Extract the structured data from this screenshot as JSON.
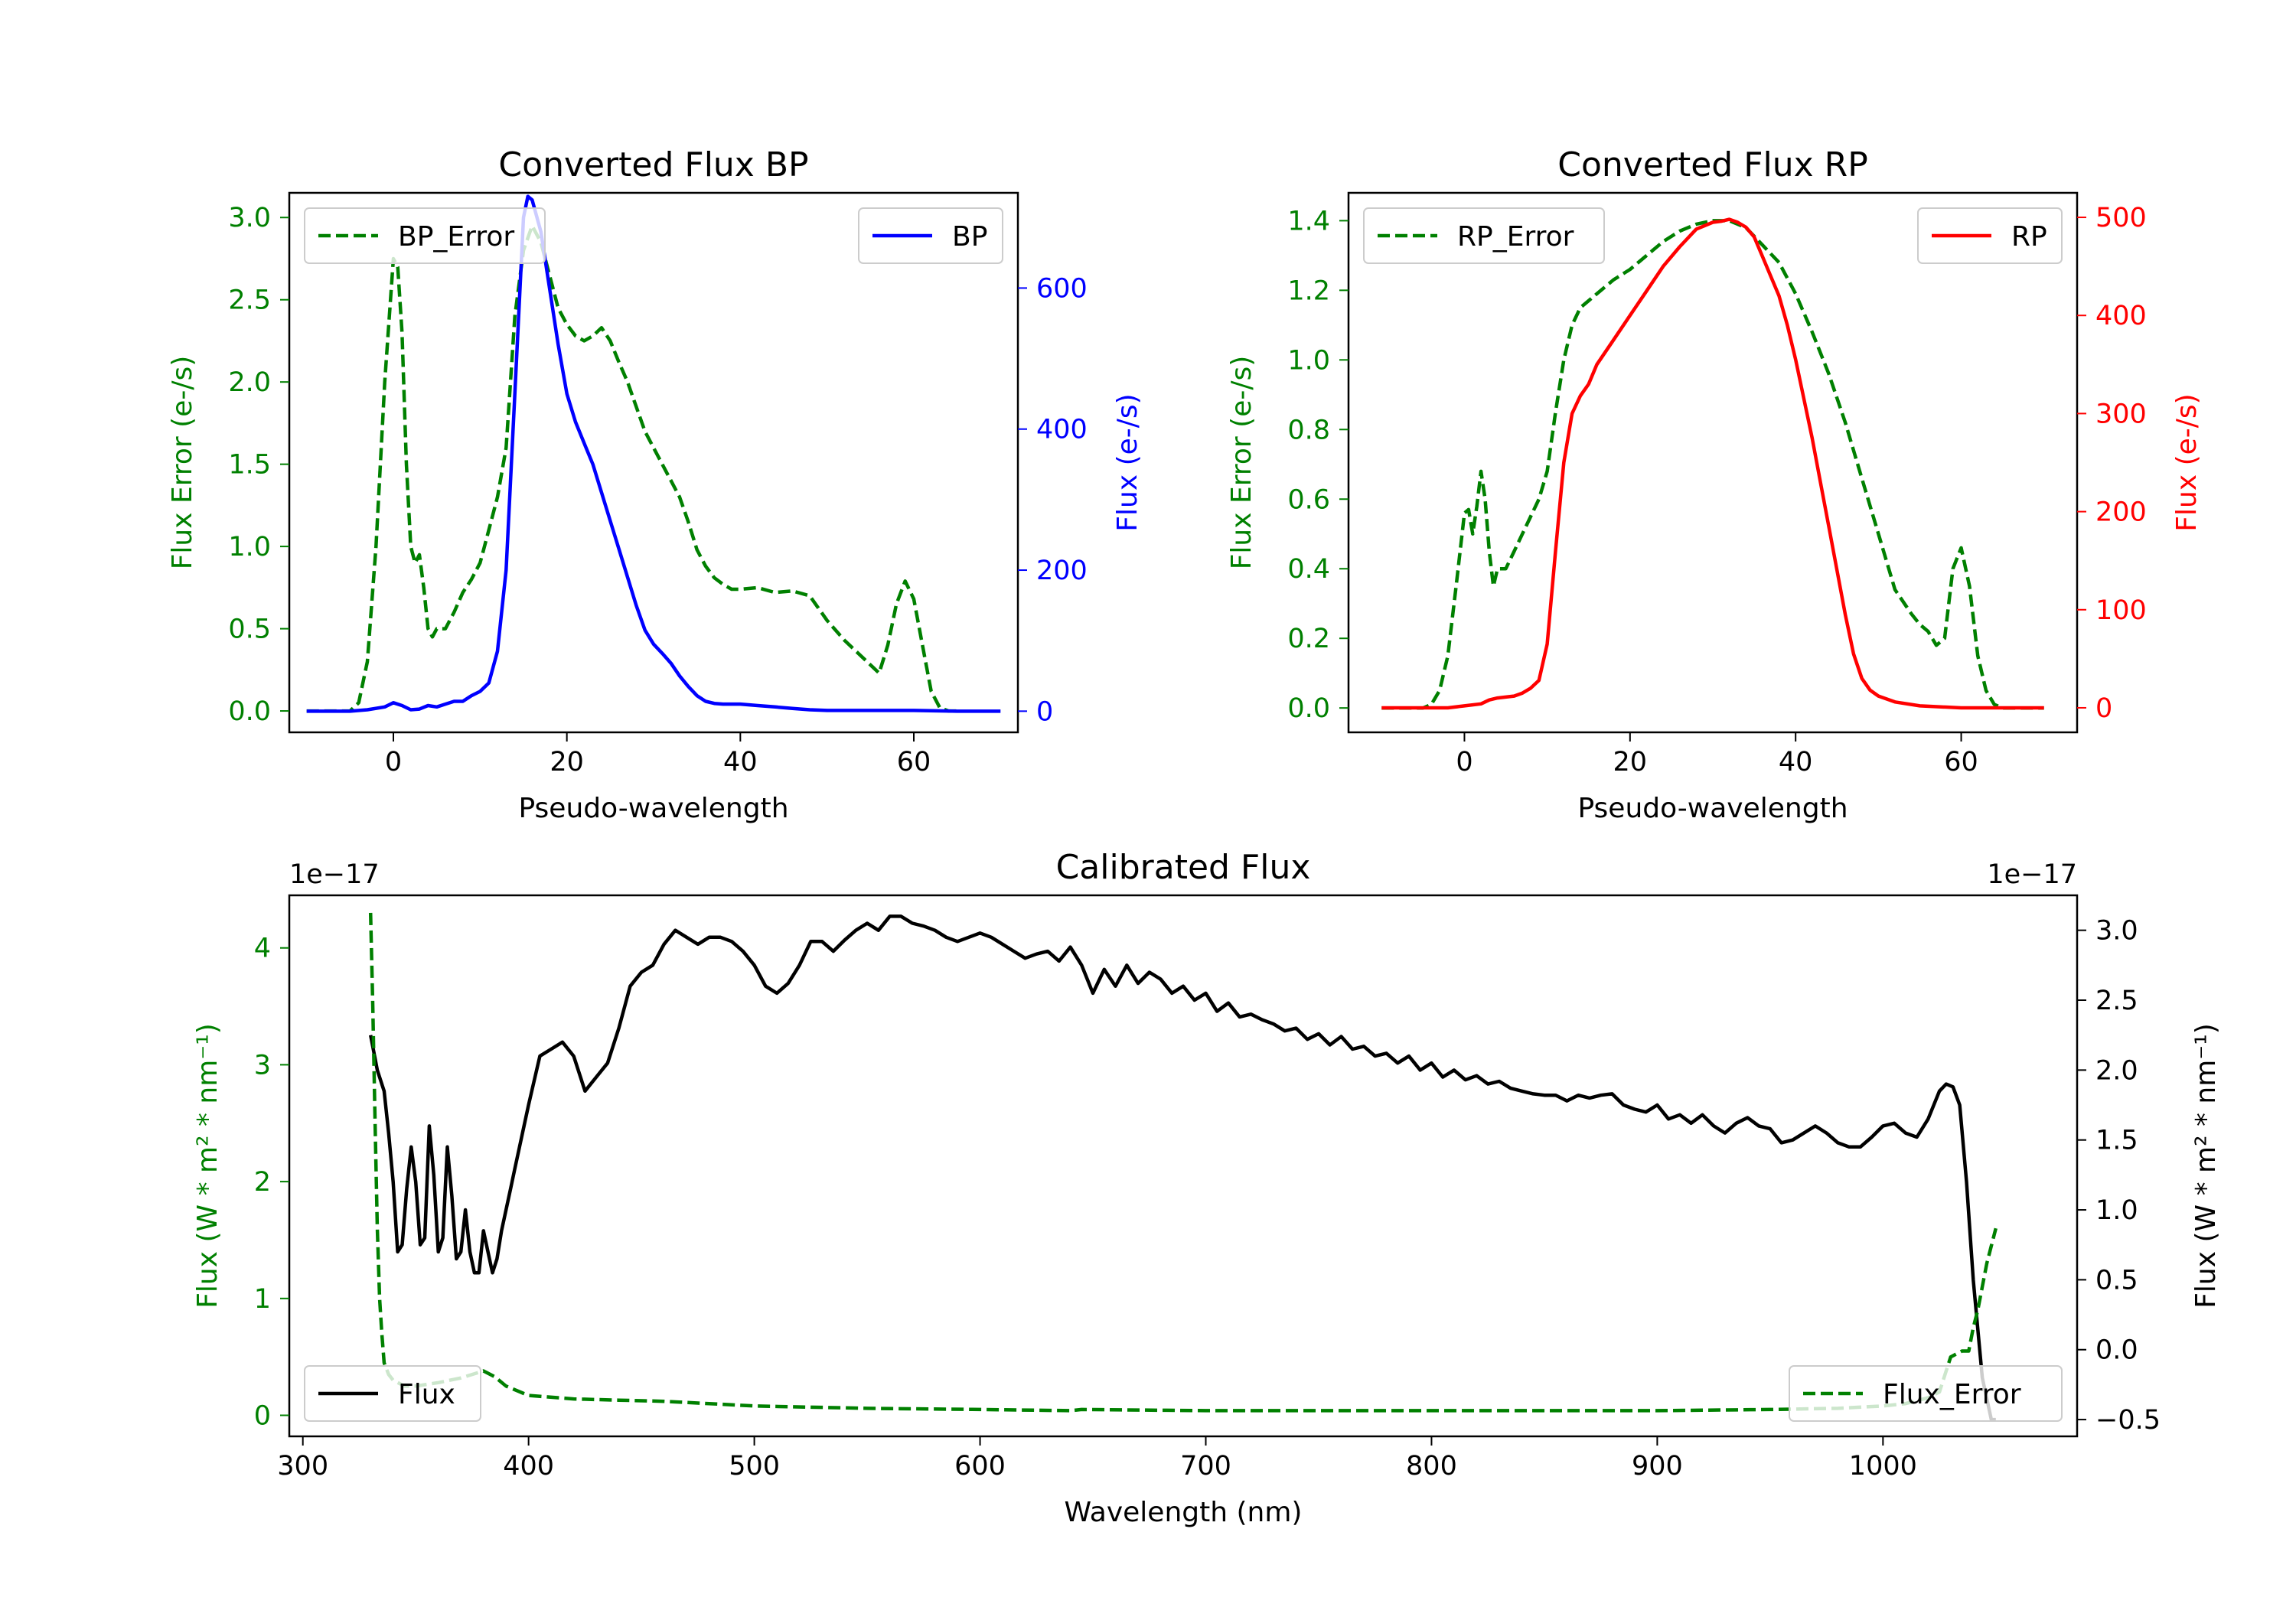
{
  "chart_data": [
    {
      "id": "bp",
      "type": "line",
      "title": "Converted Flux BP",
      "xlabel": "Pseudo-wavelength",
      "ylabel_left": "Flux Error (e-/s)",
      "ylabel_right": "Flux (e-/s)",
      "xlim": [
        -12,
        72
      ],
      "ylim_left": [
        -0.13,
        3.15
      ],
      "ylim_right": [
        -30,
        735
      ],
      "xticks": [
        0,
        20,
        40,
        60
      ],
      "yticks_left": [
        "0.0",
        "0.5",
        "1.0",
        "1.5",
        "2.0",
        "2.5",
        "3.0"
      ],
      "yticks_right": [
        0,
        200,
        400,
        600
      ],
      "colors": {
        "left_axis": "#008000",
        "right_axis": "#0000ff"
      },
      "series": [
        {
          "name": "BP_Error",
          "axis": "left",
          "style": "dashed",
          "color": "#008000",
          "x": [
            -10,
            -5,
            -4,
            -3,
            -2,
            -1,
            0,
            0.5,
            1,
            1.5,
            2,
            2.5,
            3,
            3.5,
            4,
            4.5,
            5,
            6,
            7,
            8,
            9,
            10,
            11,
            12,
            13,
            14,
            15,
            16,
            17,
            18,
            19,
            20,
            21,
            22,
            23,
            24,
            25,
            26,
            27,
            28,
            29,
            30,
            31,
            32,
            33,
            34,
            35,
            36,
            37,
            38,
            39,
            40,
            42,
            44,
            46,
            48,
            50,
            52,
            54,
            56,
            57,
            58,
            59,
            60,
            61,
            62,
            63,
            64,
            65
          ],
          "values": [
            0,
            0,
            0.05,
            0.3,
            1.0,
            2.0,
            2.75,
            2.7,
            2.3,
            1.5,
            1.0,
            0.9,
            0.95,
            0.75,
            0.5,
            0.45,
            0.5,
            0.5,
            0.6,
            0.72,
            0.8,
            0.9,
            1.1,
            1.3,
            1.6,
            2.4,
            2.8,
            2.95,
            2.85,
            2.65,
            2.45,
            2.35,
            2.28,
            2.25,
            2.28,
            2.33,
            2.25,
            2.12,
            2.0,
            1.85,
            1.7,
            1.6,
            1.5,
            1.4,
            1.3,
            1.15,
            0.98,
            0.88,
            0.81,
            0.77,
            0.74,
            0.74,
            0.75,
            0.72,
            0.73,
            0.7,
            0.55,
            0.43,
            0.33,
            0.23,
            0.4,
            0.65,
            0.79,
            0.68,
            0.4,
            0.12,
            0.02,
            0,
            0
          ]
        },
        {
          "name": "BP",
          "axis": "right",
          "style": "solid",
          "color": "#0000ff",
          "x": [
            -10,
            -5,
            -3,
            -1,
            0,
            1,
            2,
            3,
            4,
            5,
            6,
            7,
            8,
            9,
            10,
            11,
            12,
            13,
            14,
            15,
            15.5,
            16,
            17,
            18,
            19,
            20,
            21,
            22,
            23,
            24,
            25,
            26,
            27,
            28,
            29,
            30,
            31,
            32,
            33,
            34,
            35,
            36,
            37,
            38,
            39,
            40,
            42,
            44,
            46,
            48,
            50,
            55,
            60,
            65,
            70
          ],
          "values": [
            0,
            0,
            2,
            6,
            12,
            8,
            2,
            3,
            8,
            6,
            10,
            14,
            14,
            22,
            28,
            40,
            85,
            200,
            450,
            700,
            730,
            725,
            680,
            600,
            520,
            450,
            410,
            380,
            350,
            310,
            270,
            230,
            190,
            150,
            115,
            95,
            82,
            68,
            50,
            35,
            22,
            14,
            11,
            10,
            10,
            10,
            8,
            6,
            4,
            2,
            1,
            1,
            1,
            0,
            0
          ]
        }
      ],
      "legends": [
        {
          "label": "BP_Error",
          "position": "upper left"
        },
        {
          "label": "BP",
          "position": "upper right"
        }
      ]
    },
    {
      "id": "rp",
      "type": "line",
      "title": "Converted Flux RP",
      "xlabel": "Pseudo-wavelength",
      "ylabel_left": "Flux Error (e-/s)",
      "ylabel_right": "Flux (e-/s)",
      "xlim": [
        -14,
        74
      ],
      "ylim_left": [
        -0.07,
        1.48
      ],
      "ylim_right": [
        -25,
        525
      ],
      "xticks": [
        0,
        20,
        40,
        60
      ],
      "yticks_left": [
        "0.0",
        "0.2",
        "0.4",
        "0.6",
        "0.8",
        "1.0",
        "1.2",
        "1.4"
      ],
      "yticks_right": [
        0,
        100,
        200,
        300,
        400,
        500
      ],
      "colors": {
        "left_axis": "#008000",
        "right_axis": "#ff0000"
      },
      "series": [
        {
          "name": "RP_Error",
          "axis": "left",
          "style": "dashed",
          "color": "#008000",
          "x": [
            -10,
            -5,
            -4,
            -3,
            -2,
            -1,
            0,
            0.5,
            1,
            1.5,
            2,
            2.5,
            3,
            3.5,
            4,
            5,
            6,
            7,
            8,
            9,
            10,
            11,
            12,
            13,
            14,
            15,
            16,
            18,
            20,
            22,
            24,
            26,
            28,
            30,
            32,
            34,
            36,
            38,
            40,
            42,
            44,
            46,
            48,
            50,
            52,
            54,
            55,
            56,
            57,
            58,
            59,
            60,
            61,
            62,
            63,
            64,
            65,
            66,
            70
          ],
          "values": [
            0,
            0,
            0.01,
            0.05,
            0.15,
            0.35,
            0.56,
            0.57,
            0.5,
            0.58,
            0.68,
            0.6,
            0.45,
            0.35,
            0.4,
            0.4,
            0.45,
            0.5,
            0.55,
            0.6,
            0.68,
            0.85,
            1.0,
            1.1,
            1.15,
            1.17,
            1.19,
            1.23,
            1.26,
            1.3,
            1.34,
            1.37,
            1.39,
            1.4,
            1.4,
            1.38,
            1.33,
            1.28,
            1.19,
            1.08,
            0.96,
            0.82,
            0.66,
            0.5,
            0.34,
            0.27,
            0.24,
            0.22,
            0.18,
            0.2,
            0.4,
            0.46,
            0.35,
            0.15,
            0.05,
            0.01,
            0,
            0,
            0
          ]
        },
        {
          "name": "RP",
          "axis": "right",
          "style": "solid",
          "color": "#ff0000",
          "x": [
            -10,
            -5,
            -2,
            0,
            2,
            3,
            4,
            5,
            6,
            7,
            8,
            9,
            10,
            11,
            12,
            13,
            14,
            15,
            16,
            18,
            20,
            22,
            24,
            26,
            28,
            30,
            31,
            32,
            33,
            34,
            35,
            36,
            37,
            38,
            39,
            40,
            41,
            42,
            43,
            44,
            45,
            46,
            47,
            48,
            49,
            50,
            52,
            55,
            60,
            70
          ],
          "values": [
            0,
            0,
            0,
            2,
            4,
            8,
            10,
            11,
            12,
            15,
            20,
            28,
            65,
            160,
            250,
            300,
            318,
            330,
            350,
            375,
            400,
            425,
            450,
            470,
            488,
            495,
            496,
            498,
            495,
            490,
            480,
            460,
            440,
            420,
            390,
            355,
            315,
            275,
            230,
            185,
            140,
            95,
            55,
            30,
            18,
            12,
            6,
            2,
            0,
            0
          ]
        }
      ],
      "legends": [
        {
          "label": "RP_Error",
          "position": "upper left"
        },
        {
          "label": "RP",
          "position": "upper right"
        }
      ]
    },
    {
      "id": "calib",
      "type": "line",
      "title": "Calibrated Flux",
      "xlabel": "Wavelength (nm)",
      "ylabel_left": "Flux (W * m² * nm⁻¹)",
      "ylabel_right": "Flux (W * m² * nm⁻¹)",
      "offset_left": "1e−17",
      "offset_right": "1e−17",
      "xlim": [
        294,
        1086
      ],
      "ylim_left": [
        -0.18,
        4.45
      ],
      "ylim_right": [
        -0.62,
        3.25
      ],
      "xticks": [
        300,
        400,
        500,
        600,
        700,
        800,
        900,
        1000
      ],
      "yticks_left": [
        0,
        1,
        2,
        3,
        4
      ],
      "yticks_right": [
        "−0.5",
        "0.0",
        "0.5",
        "1.0",
        "1.5",
        "2.0",
        "2.5",
        "3.0"
      ],
      "colors": {
        "left_axis": "#008000",
        "right_axis": "#000000"
      },
      "series": [
        {
          "name": "Flux",
          "axis": "right",
          "style": "solid",
          "color": "#000000",
          "x": [
            330,
            333,
            336,
            338,
            340,
            342,
            344,
            346,
            348,
            350,
            352,
            354,
            356,
            358,
            360,
            362,
            364,
            366,
            368,
            370,
            372,
            374,
            376,
            378,
            380,
            382,
            384,
            386,
            388,
            390,
            392,
            394,
            396,
            398,
            400,
            405,
            410,
            415,
            420,
            425,
            430,
            435,
            440,
            445,
            450,
            455,
            460,
            465,
            470,
            475,
            480,
            485,
            490,
            495,
            500,
            505,
            510,
            515,
            520,
            525,
            530,
            535,
            540,
            545,
            550,
            555,
            560,
            565,
            570,
            575,
            580,
            585,
            590,
            595,
            600,
            605,
            610,
            615,
            620,
            625,
            630,
            635,
            640,
            645,
            650,
            655,
            660,
            665,
            670,
            675,
            680,
            685,
            690,
            695,
            700,
            705,
            710,
            715,
            720,
            725,
            730,
            735,
            740,
            745,
            750,
            755,
            760,
            765,
            770,
            775,
            780,
            785,
            790,
            795,
            800,
            805,
            810,
            815,
            820,
            825,
            830,
            835,
            840,
            845,
            850,
            855,
            860,
            865,
            870,
            875,
            880,
            885,
            890,
            895,
            900,
            905,
            910,
            915,
            920,
            925,
            930,
            935,
            940,
            945,
            950,
            955,
            960,
            965,
            970,
            975,
            980,
            985,
            990,
            995,
            1000,
            1005,
            1010,
            1015,
            1020,
            1025,
            1028,
            1031,
            1034,
            1037,
            1040,
            1044,
            1048,
            1050
          ],
          "values": [
            2.25,
            2.0,
            1.85,
            1.55,
            1.2,
            0.7,
            0.75,
            1.15,
            1.45,
            1.2,
            0.75,
            0.8,
            1.6,
            1.25,
            0.7,
            0.8,
            1.45,
            1.1,
            0.65,
            0.7,
            1.0,
            0.7,
            0.55,
            0.55,
            0.85,
            0.7,
            0.55,
            0.65,
            0.85,
            1.0,
            1.15,
            1.3,
            1.45,
            1.6,
            1.75,
            2.1,
            2.15,
            2.2,
            2.1,
            1.85,
            1.95,
            2.05,
            2.3,
            2.6,
            2.7,
            2.75,
            2.9,
            3.0,
            2.95,
            2.9,
            2.95,
            2.95,
            2.92,
            2.85,
            2.75,
            2.6,
            2.55,
            2.62,
            2.75,
            2.92,
            2.92,
            2.85,
            2.93,
            3.0,
            3.05,
            3.0,
            3.1,
            3.1,
            3.05,
            3.03,
            3.0,
            2.95,
            2.92,
            2.95,
            2.98,
            2.95,
            2.9,
            2.85,
            2.8,
            2.83,
            2.85,
            2.78,
            2.88,
            2.75,
            2.55,
            2.72,
            2.6,
            2.75,
            2.62,
            2.7,
            2.65,
            2.55,
            2.6,
            2.5,
            2.55,
            2.42,
            2.48,
            2.38,
            2.4,
            2.36,
            2.33,
            2.28,
            2.3,
            2.22,
            2.26,
            2.18,
            2.24,
            2.15,
            2.17,
            2.1,
            2.12,
            2.05,
            2.1,
            2.0,
            2.05,
            1.95,
            2.0,
            1.93,
            1.96,
            1.9,
            1.92,
            1.87,
            1.85,
            1.83,
            1.82,
            1.82,
            1.78,
            1.82,
            1.8,
            1.82,
            1.83,
            1.75,
            1.72,
            1.7,
            1.75,
            1.65,
            1.68,
            1.62,
            1.68,
            1.6,
            1.55,
            1.62,
            1.66,
            1.6,
            1.58,
            1.48,
            1.5,
            1.55,
            1.6,
            1.55,
            1.48,
            1.45,
            1.45,
            1.52,
            1.6,
            1.62,
            1.55,
            1.52,
            1.65,
            1.85,
            1.9,
            1.88,
            1.75,
            1.2,
            0.5,
            -0.2,
            -0.5,
            -0.5
          ]
        },
        {
          "name": "Flux_Error",
          "axis": "left",
          "style": "dashed",
          "color": "#008000",
          "x": [
            330,
            331,
            332,
            333,
            334,
            335,
            336,
            338,
            340,
            345,
            350,
            360,
            370,
            380,
            385,
            390,
            400,
            420,
            440,
            460,
            500,
            550,
            600,
            640,
            645,
            700,
            800,
            900,
            950,
            980,
            1000,
            1010,
            1020,
            1025,
            1030,
            1035,
            1038,
            1040,
            1042,
            1044,
            1046,
            1048,
            1050
          ],
          "values": [
            4.3,
            3.5,
            2.5,
            1.6,
            1.0,
            0.7,
            0.45,
            0.35,
            0.3,
            0.25,
            0.25,
            0.28,
            0.32,
            0.38,
            0.33,
            0.25,
            0.17,
            0.14,
            0.13,
            0.12,
            0.08,
            0.06,
            0.05,
            0.04,
            0.05,
            0.04,
            0.04,
            0.04,
            0.05,
            0.06,
            0.08,
            0.1,
            0.15,
            0.2,
            0.5,
            0.55,
            0.55,
            0.75,
            0.9,
            1.1,
            1.3,
            1.45,
            1.6
          ]
        }
      ],
      "legends": [
        {
          "label": "Flux",
          "position": "lower left"
        },
        {
          "label": "Flux_Error",
          "position": "lower right"
        }
      ]
    }
  ]
}
